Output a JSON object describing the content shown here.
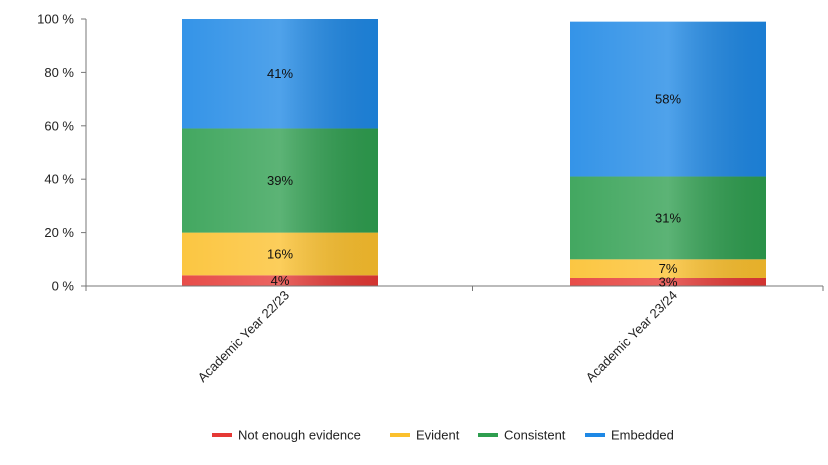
{
  "chart_data": {
    "type": "bar",
    "stacked": true,
    "percent": true,
    "title": "",
    "xlabel": "",
    "ylabel": "",
    "ylim": [
      0,
      100
    ],
    "yticks": [
      "0 %",
      "20 %",
      "40 %",
      "60 %",
      "80 %",
      "100 %"
    ],
    "categories": [
      "Academic Year 22/23",
      "Academic Year 23/24"
    ],
    "series": [
      {
        "name": "Not enough evidence",
        "color": "#e53935",
        "values": [
          4,
          3
        ],
        "labels": [
          "4%",
          "3%"
        ]
      },
      {
        "name": "Evident",
        "color": "#fbc02d",
        "values": [
          16,
          7
        ],
        "labels": [
          "16%",
          "7%"
        ]
      },
      {
        "name": "Consistent",
        "color": "#2e9e4f",
        "values": [
          39,
          31
        ],
        "labels": [
          "39%",
          "31%"
        ]
      },
      {
        "name": "Embedded",
        "color": "#1e88e5",
        "values": [
          41,
          58
        ],
        "labels": [
          "41%",
          "58%"
        ]
      }
    ],
    "legend_position": "bottom"
  }
}
